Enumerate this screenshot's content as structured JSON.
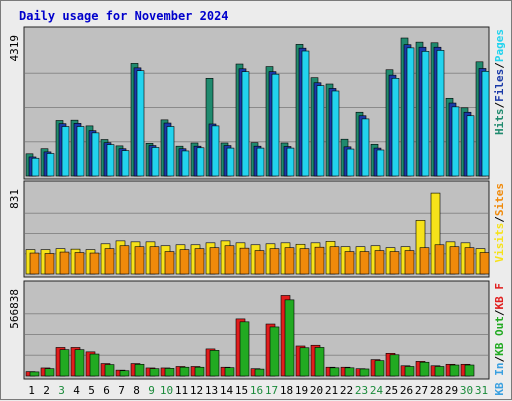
{
  "colors": {
    "hits": "#1f8a6e",
    "files": "#1a3aa8",
    "pages": "#22d3ee",
    "visits": "#f6e21a",
    "sites": "#f08a0a",
    "kbin": "#3aa0e0",
    "kbout": "#22aa22",
    "kbf": "#e11d1d",
    "panel": "#c0c0c0",
    "title": "#0000cc",
    "weekend": "#1a8a3a"
  },
  "chart_data": {
    "type": "bar",
    "title": "Daily usage for November 2024",
    "categories": [
      "1",
      "2",
      "3",
      "4",
      "5",
      "6",
      "7",
      "8",
      "9",
      "10",
      "11",
      "12",
      "13",
      "14",
      "15",
      "16",
      "17",
      "18",
      "19",
      "20",
      "21",
      "22",
      "23",
      "24",
      "25",
      "26",
      "27",
      "28",
      "29",
      "30",
      "31"
    ],
    "weekend_days": [
      "3",
      "9",
      "10",
      "16",
      "17",
      "23",
      "24",
      "30",
      "31"
    ],
    "panels": [
      {
        "name": "usage",
        "ymax_label": "4319",
        "ymax": 4319,
        "legend": [
          {
            "text": "Hits",
            "color_key": "hits"
          },
          {
            "text": "Files",
            "color_key": "files"
          },
          {
            "text": "Pages",
            "color_key": "pages"
          }
        ],
        "series": [
          {
            "name": "Hits",
            "color_key": "hits",
            "values": [
              700,
              860,
              1750,
              1760,
              1580,
              1150,
              950,
              3550,
              1030,
              1770,
              940,
              1040,
              3080,
              1040,
              3530,
              1050,
              3450,
              1040,
              4150,
              3100,
              2900,
              1160,
              2010,
              1000,
              3350,
              4350,
              4220,
              4200,
              2450,
              2150,
              3600
            ]
          },
          {
            "name": "Files",
            "color_key": "files",
            "values": [
              600,
              760,
              1650,
              1660,
              1430,
              1050,
              860,
              3410,
              960,
              1670,
              860,
              940,
              1640,
              960,
              3380,
              940,
              3290,
              930,
              4030,
              2940,
              2760,
              920,
              1900,
              880,
              3180,
              4140,
              4060,
              4060,
              2300,
              2010,
              3390
            ]
          },
          {
            "name": "Pages",
            "color_key": "pages",
            "values": [
              560,
              710,
              1560,
              1560,
              1360,
              990,
              800,
              3320,
              900,
              1560,
              790,
              890,
              1580,
              880,
              3290,
              880,
              3210,
              880,
              3940,
              2850,
              2680,
              850,
              1800,
              820,
              3080,
              4040,
              3930,
              3960,
              2180,
              1900,
              3300
            ]
          }
        ]
      },
      {
        "name": "visits",
        "ymax_label": "831",
        "ymax": 831,
        "legend": [
          {
            "text": "Visits",
            "color_key": "visits"
          },
          {
            "text": "Sites",
            "color_key": "sites"
          }
        ],
        "series": [
          {
            "name": "Visits",
            "color_key": "visits",
            "values": [
              250,
              250,
              260,
              255,
              250,
              310,
              340,
              330,
              330,
              290,
              300,
              300,
              320,
              340,
              320,
              300,
              310,
              320,
              305,
              320,
              335,
              280,
              280,
              290,
              270,
              280,
              550,
              830,
              330,
              320,
              260
            ]
          },
          {
            "name": "Sites",
            "color_key": "sites",
            "values": [
              215,
              210,
              225,
              220,
              215,
              260,
              290,
              280,
              280,
              230,
              250,
              260,
              270,
              290,
              265,
              240,
              260,
              270,
              260,
              275,
              280,
              230,
              230,
              240,
              230,
              240,
              270,
              300,
              280,
              270,
              220
            ]
          }
        ]
      },
      {
        "name": "traffic",
        "ymax_label": "566838",
        "ymax": 566838,
        "legend": [
          {
            "text": "KB In",
            "color_key": "kbin"
          },
          {
            "text": "KB Out",
            "color_key": "kbout"
          },
          {
            "text": "KB F",
            "color_key": "kbf"
          }
        ],
        "series": [
          {
            "name": "KB F",
            "color_key": "kbf",
            "values": [
              30000,
              55000,
              195000,
              195000,
              165000,
              85000,
              40000,
              85000,
              55000,
              55000,
              65000,
              65000,
              185000,
              60000,
              390000,
              50000,
              355000,
              550000,
              205000,
              210000,
              60000,
              60000,
              50000,
              112000,
              155000,
              70000,
              100000,
              70000,
              80000,
              80000,
              0
            ]
          },
          {
            "name": "KB Out",
            "color_key": "kbout",
            "values": [
              28000,
              50000,
              180000,
              180000,
              150000,
              78000,
              36000,
              80000,
              50000,
              52000,
              60000,
              60000,
              175000,
              57000,
              370000,
              47000,
              335000,
              520000,
              193000,
              195000,
              56000,
              56000,
              48000,
              105000,
              145000,
              65000,
              94000,
              65000,
              75000,
              75000,
              0
            ]
          }
        ]
      }
    ]
  }
}
